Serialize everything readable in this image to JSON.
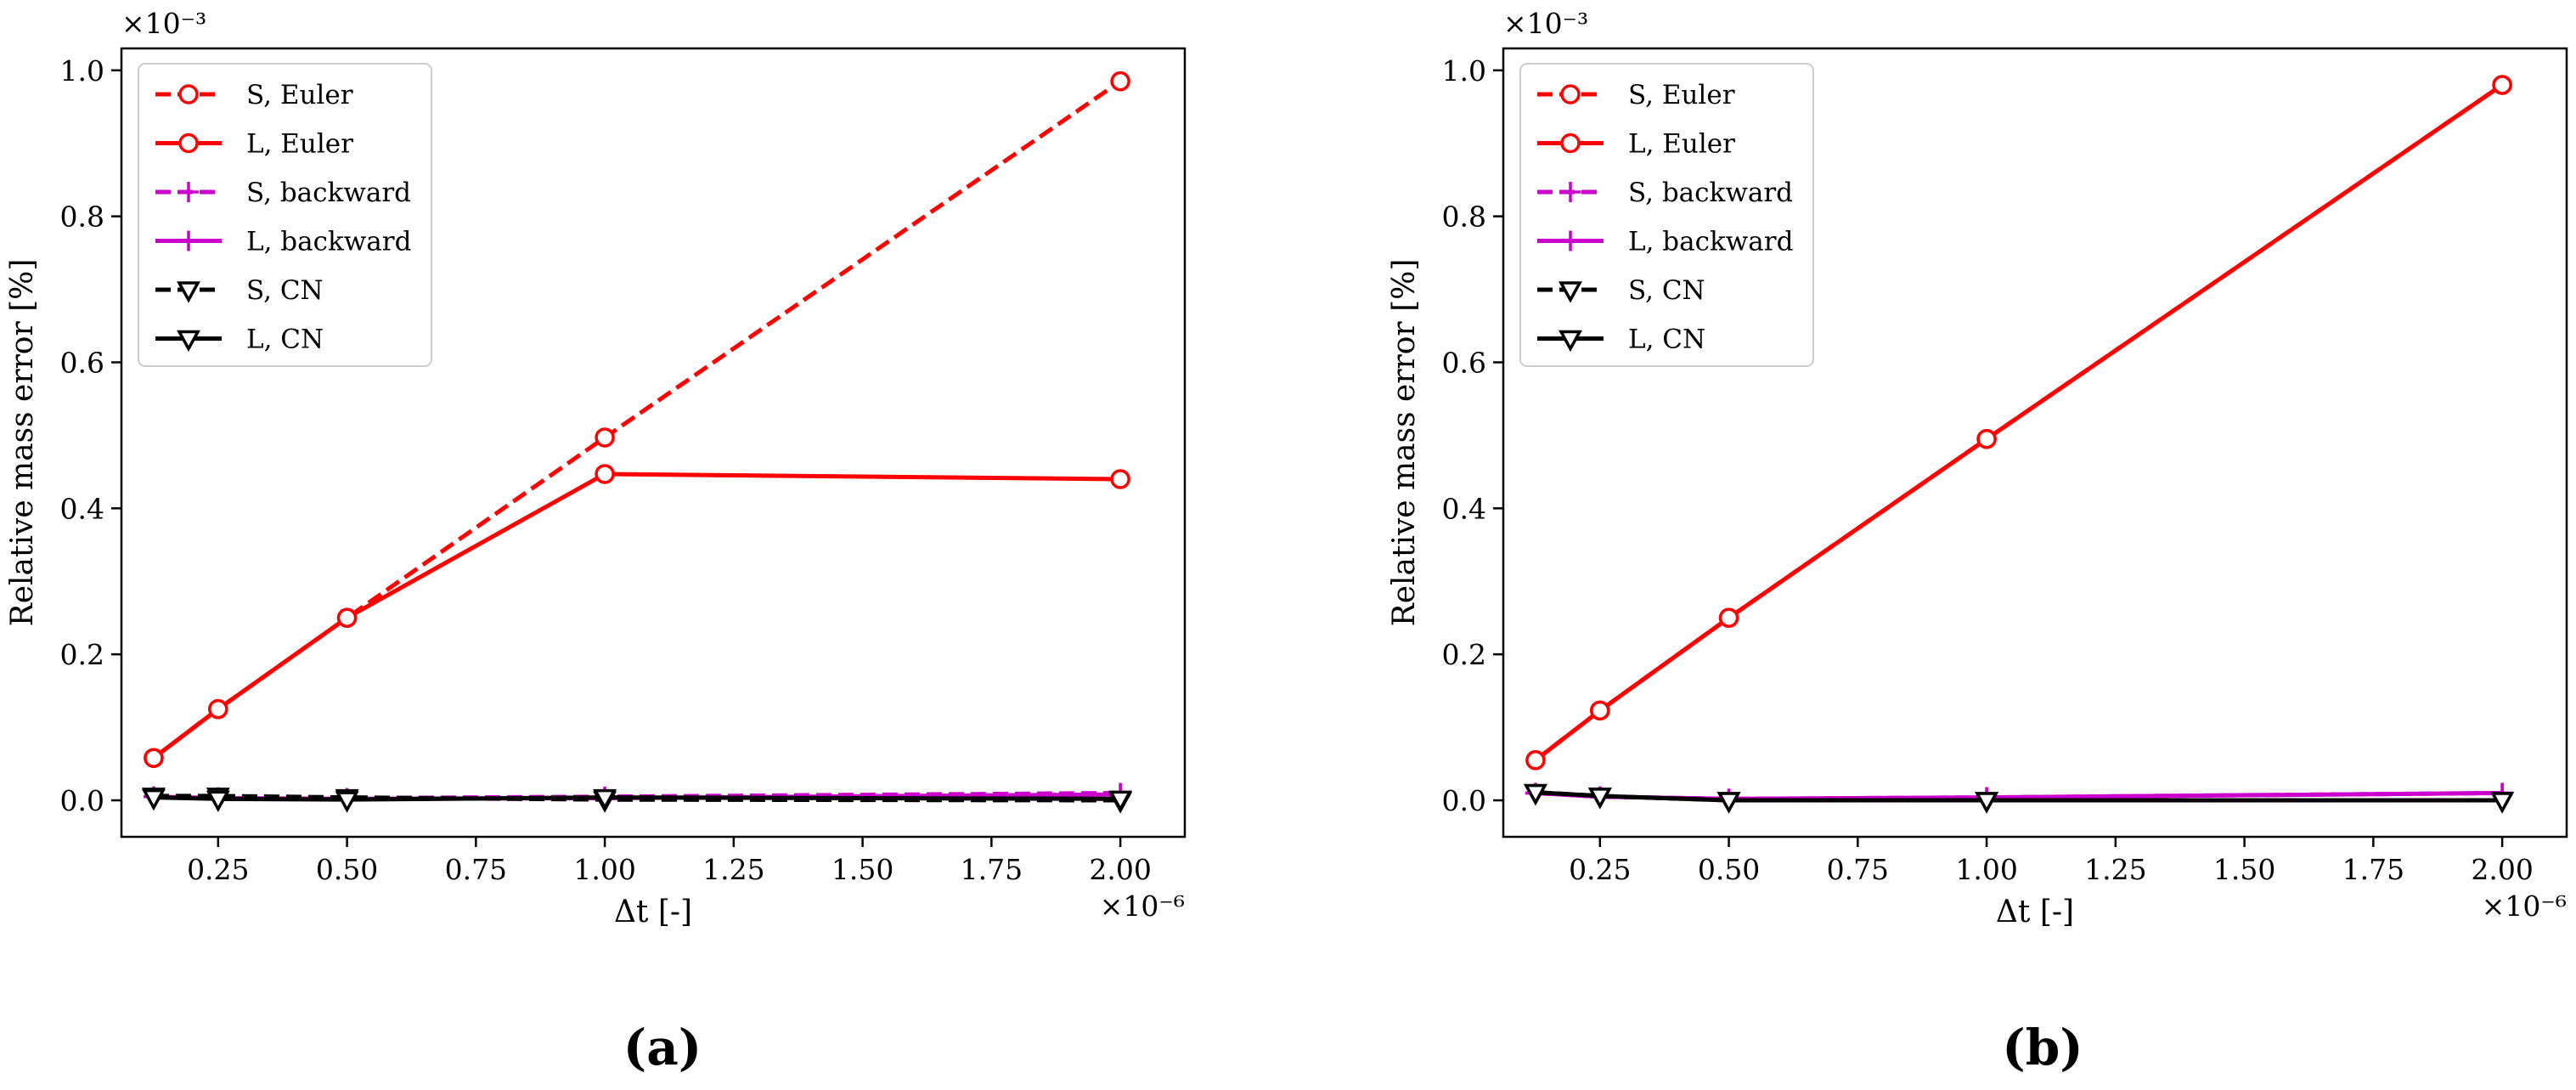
{
  "chart_data": [
    {
      "type": "line",
      "panel_label": "(a)",
      "xlabel": "Δt [-]",
      "ylabel": "Relative mass error [%]",
      "x_multiplier": "×10⁻⁶",
      "y_multiplier": "×10⁻³",
      "xlim": [
        0.0625,
        2.125
      ],
      "ylim": [
        -0.05,
        1.03
      ],
      "xticks": [
        0.25,
        0.5,
        0.75,
        1.0,
        1.25,
        1.5,
        1.75,
        2.0
      ],
      "xtick_labels": [
        "0.25",
        "0.50",
        "0.75",
        "1.00",
        "1.25",
        "1.50",
        "1.75",
        "2.00"
      ],
      "yticks": [
        0.0,
        0.2,
        0.4,
        0.6,
        0.8,
        1.0
      ],
      "ytick_labels": [
        "0.0",
        "0.2",
        "0.4",
        "0.6",
        "0.8",
        "1.0"
      ],
      "legend_position": "top-left",
      "x": [
        0.125,
        0.25,
        0.5,
        1.0,
        2.0
      ],
      "series": [
        {
          "name": "S, Euler",
          "color": "#ff0000",
          "dash": "dashed",
          "marker": "circle",
          "values": [
            0.058,
            0.125,
            0.25,
            0.497,
            0.985
          ]
        },
        {
          "name": "L, Euler",
          "color": "#ff0000",
          "dash": "solid",
          "marker": "circle",
          "values": [
            0.058,
            0.125,
            0.25,
            0.447,
            0.44
          ]
        },
        {
          "name": "S, backward",
          "color": "#cc00cc",
          "dash": "dashed",
          "marker": "plus",
          "values": [
            0.005,
            0.004,
            0.003,
            0.005,
            0.01
          ]
        },
        {
          "name": "L, backward",
          "color": "#cc00cc",
          "dash": "solid",
          "marker": "plus",
          "values": [
            0.005,
            0.003,
            0.002,
            0.003,
            0.008
          ]
        },
        {
          "name": "S, CN",
          "color": "#000000",
          "dash": "dashed",
          "marker": "triangle-down",
          "values": [
            0.006,
            0.006,
            0.004,
            0.001,
            0.0
          ]
        },
        {
          "name": "L, CN",
          "color": "#000000",
          "dash": "solid",
          "marker": "triangle-down",
          "values": [
            0.004,
            0.002,
            0.001,
            0.004,
            0.002
          ]
        }
      ]
    },
    {
      "type": "line",
      "panel_label": "(b)",
      "xlabel": "Δt [-]",
      "ylabel": "Relative mass error [%]",
      "x_multiplier": "×10⁻⁶",
      "y_multiplier": "×10⁻³",
      "xlim": [
        0.0625,
        2.125
      ],
      "ylim": [
        -0.05,
        1.03
      ],
      "xticks": [
        0.25,
        0.5,
        0.75,
        1.0,
        1.25,
        1.5,
        1.75,
        2.0
      ],
      "xtick_labels": [
        "0.25",
        "0.50",
        "0.75",
        "1.00",
        "1.25",
        "1.50",
        "1.75",
        "2.00"
      ],
      "yticks": [
        0.0,
        0.2,
        0.4,
        0.6,
        0.8,
        1.0
      ],
      "ytick_labels": [
        "0.0",
        "0.2",
        "0.4",
        "0.6",
        "0.8",
        "1.0"
      ],
      "legend_position": "top-left",
      "x": [
        0.125,
        0.25,
        0.5,
        1.0,
        2.0
      ],
      "series": [
        {
          "name": "S, Euler",
          "color": "#ff0000",
          "dash": "dashed",
          "marker": "circle",
          "values": [
            0.055,
            0.123,
            0.25,
            0.495,
            0.98
          ]
        },
        {
          "name": "L, Euler",
          "color": "#ff0000",
          "dash": "solid",
          "marker": "circle",
          "values": [
            0.055,
            0.123,
            0.25,
            0.495,
            0.98
          ]
        },
        {
          "name": "S, backward",
          "color": "#cc00cc",
          "dash": "dashed",
          "marker": "plus",
          "values": [
            0.01,
            0.005,
            0.002,
            0.004,
            0.01
          ]
        },
        {
          "name": "L, backward",
          "color": "#cc00cc",
          "dash": "solid",
          "marker": "plus",
          "values": [
            0.01,
            0.005,
            0.002,
            0.004,
            0.01
          ]
        },
        {
          "name": "S, CN",
          "color": "#000000",
          "dash": "dashed",
          "marker": "triangle-down",
          "values": [
            0.011,
            0.006,
            0.0,
            0.0,
            0.0
          ]
        },
        {
          "name": "L, CN",
          "color": "#000000",
          "dash": "solid",
          "marker": "triangle-down",
          "values": [
            0.011,
            0.006,
            0.0,
            0.0,
            0.0
          ]
        }
      ]
    }
  ]
}
